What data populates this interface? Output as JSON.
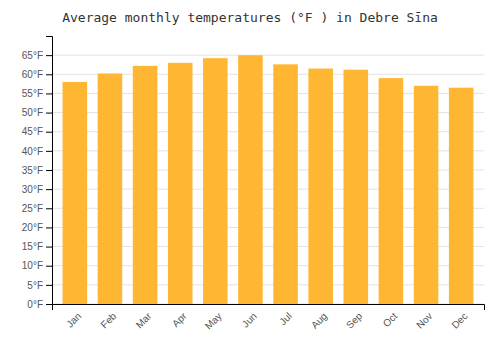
{
  "chart_data": {
    "type": "bar",
    "title": "Average monthly temperatures (°F ) in Debre Sīna",
    "categories": [
      "Jan",
      "Feb",
      "Mar",
      "Apr",
      "May",
      "Jun",
      "Jul",
      "Aug",
      "Sep",
      "Oct",
      "Nov",
      "Dec"
    ],
    "values": [
      58.0,
      60.2,
      62.2,
      63.0,
      64.2,
      65.0,
      62.6,
      61.5,
      61.2,
      59.0,
      57.0,
      56.5
    ],
    "color": "#FFB733",
    "ylim": [
      0,
      70
    ],
    "yticks": [
      {
        "value": 0,
        "label": "0°F"
      },
      {
        "value": 5,
        "label": "5°F"
      },
      {
        "value": 10,
        "label": "10°F"
      },
      {
        "value": 15,
        "label": "15°F"
      },
      {
        "value": 20,
        "label": "20°F"
      },
      {
        "value": 25,
        "label": "25°F"
      },
      {
        "value": 30,
        "label": "30°F"
      },
      {
        "value": 35,
        "label": "35°F"
      },
      {
        "value": 40,
        "label": "40°F"
      },
      {
        "value": 45,
        "label": "45°F"
      },
      {
        "value": 50,
        "label": "50°F"
      },
      {
        "value": 55,
        "label": "55°F"
      },
      {
        "value": 60,
        "label": "60°F"
      },
      {
        "value": 65,
        "label": "65°F"
      }
    ],
    "grid": true
  }
}
